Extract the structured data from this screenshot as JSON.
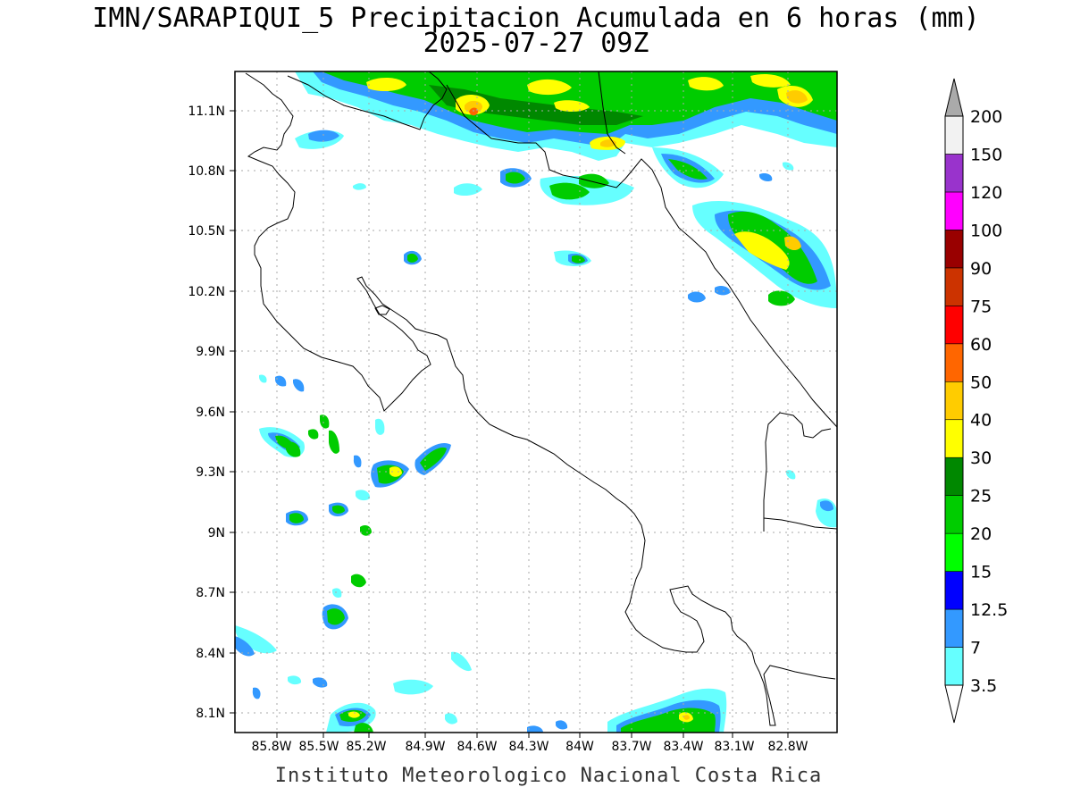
{
  "header": {
    "title_line1": "IMN/SARAPIQUI_5 Precipitacion Acumulada en 6 horas (mm)",
    "title_line2": "2025-07-27 09Z"
  },
  "footer": {
    "credit": "Instituto Meteorologico Nacional Costa Rica"
  },
  "axes": {
    "lat_labels": [
      "11.1N",
      "10.8N",
      "10.5N",
      "10.2N",
      "9.9N",
      "9.6N",
      "9.3N",
      "9N",
      "8.7N",
      "8.4N",
      "8.1N"
    ],
    "lon_labels": [
      "85.8W",
      "85.5W",
      "85.2W",
      "84.9W",
      "84.6W",
      "84.3W",
      "84W",
      "83.7W",
      "83.4W",
      "83.1W",
      "82.8W"
    ]
  },
  "colorbar": {
    "labels": [
      "3.5",
      "7",
      "12.5",
      "15",
      "20",
      "25",
      "30",
      "40",
      "50",
      "60",
      "75",
      "90",
      "100",
      "120",
      "150",
      "200"
    ],
    "colors": [
      "#ffffff",
      "#66ffff",
      "#3399ff",
      "#0000ff",
      "#00ff00",
      "#00cc00",
      "#008800",
      "#ffff00",
      "#ffcc00",
      "#ff6600",
      "#ff0000",
      "#cc3300",
      "#990000",
      "#ff00ff",
      "#9933cc",
      "#f2f2f2",
      "#aaaaaa"
    ]
  },
  "colors": {
    "lt_cyan": "#66ffff",
    "blue_7": "#3399ff",
    "blue_125": "#0000ff",
    "green_15": "#00ff00",
    "green_20": "#00cc00",
    "green_25": "#008800",
    "yellow_30": "#ffff00",
    "orange_40": "#ffcc00",
    "orange_50": "#ff6600",
    "red_60": "#ff0000"
  }
}
